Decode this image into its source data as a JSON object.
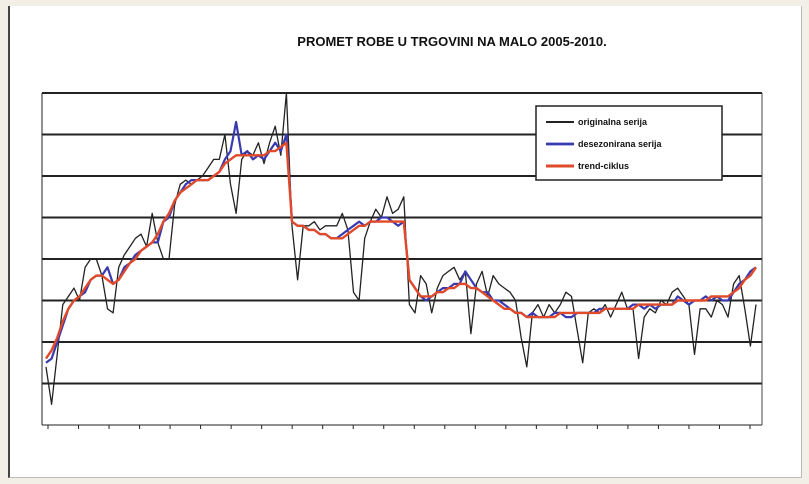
{
  "chart_data": {
    "type": "line",
    "title": "PROMET ROBE U TRGOVINI NA MALO 2005-2010.",
    "subtitle": "",
    "xlabel": "",
    "ylabel": "",
    "ylim": [
      1,
      9
    ],
    "y_ticks": [
      "",
      "",
      "",
      "",
      "",
      "",
      "",
      "",
      ""
    ],
    "x_ticks": [
      "",
      "",
      "",
      "",
      "",
      "",
      "",
      "",
      "",
      "",
      "",
      "",
      "",
      "",
      "",
      "",
      "",
      "",
      "",
      "",
      "",
      "",
      "",
      ""
    ],
    "grid": true,
    "legend_position": "top-right",
    "legend": [
      "originalna serija",
      "desezonirana serija",
      "trend-ciklus"
    ],
    "series": [
      {
        "name": "originalna serija",
        "color": "#222222",
        "values": [
          2.4,
          1.5,
          2.7,
          3.9,
          4.1,
          4.3,
          4.0,
          4.8,
          5.0,
          5.0,
          4.6,
          3.8,
          3.7,
          4.8,
          5.1,
          5.3,
          5.5,
          5.6,
          5.3,
          6.1,
          5.4,
          5.0,
          5.0,
          6.3,
          6.8,
          6.9,
          6.8,
          6.9,
          7.0,
          7.2,
          7.4,
          7.4,
          8.0,
          6.8,
          6.1,
          7.4,
          7.6,
          7.5,
          7.8,
          7.3,
          7.8,
          8.2,
          7.5,
          9.0,
          5.8,
          4.5,
          5.8,
          5.8,
          5.9,
          5.7,
          5.8,
          5.8,
          5.8,
          6.1,
          5.7,
          4.2,
          4.0,
          5.5,
          5.9,
          6.2,
          6.0,
          6.5,
          6.1,
          6.2,
          6.5,
          3.9,
          3.7,
          4.6,
          4.4,
          3.7,
          4.3,
          4.6,
          4.7,
          4.8,
          4.5,
          4.7,
          3.2,
          4.4,
          4.7,
          4.1,
          4.6,
          4.4,
          4.3,
          4.2,
          4.0,
          3.1,
          2.4,
          3.7,
          3.9,
          3.6,
          3.9,
          3.7,
          3.9,
          4.2,
          4.1,
          3.3,
          2.5,
          3.7,
          3.8,
          3.7,
          3.9,
          3.6,
          3.9,
          4.2,
          3.8,
          3.8,
          2.6,
          3.6,
          3.8,
          3.7,
          4.0,
          3.9,
          4.2,
          4.3,
          4.1,
          3.9,
          2.7,
          3.8,
          3.8,
          3.6,
          4.0,
          3.9,
          3.6,
          4.4,
          4.6,
          3.8,
          2.9,
          3.9
        ],
        "visible_count": 128
      },
      {
        "name": "desezonirana serija",
        "color": "#3a3ab0",
        "values": [
          2.5,
          2.6,
          3.0,
          3.4,
          3.8,
          4.0,
          4.1,
          4.2,
          4.5,
          4.6,
          4.6,
          4.8,
          4.4,
          4.5,
          4.8,
          4.9,
          5.1,
          5.2,
          5.3,
          5.4,
          5.4,
          5.9,
          6.0,
          6.4,
          6.6,
          6.8,
          6.9,
          6.9,
          6.9,
          6.9,
          7.0,
          7.1,
          7.4,
          7.6,
          8.3,
          7.5,
          7.6,
          7.4,
          7.5,
          7.4,
          7.6,
          7.8,
          7.6,
          8.0,
          5.9,
          5.8,
          5.8,
          5.7,
          5.7,
          5.6,
          5.6,
          5.5,
          5.5,
          5.6,
          5.7,
          5.8,
          5.9,
          5.8,
          5.9,
          5.9,
          6.0,
          6.0,
          5.9,
          5.8,
          5.9,
          4.5,
          4.3,
          4.1,
          4.0,
          4.1,
          4.2,
          4.3,
          4.3,
          4.4,
          4.4,
          4.7,
          4.5,
          4.3,
          4.2,
          4.2,
          4.0,
          4.0,
          3.9,
          3.8,
          3.7,
          3.7,
          3.6,
          3.7,
          3.6,
          3.6,
          3.6,
          3.7,
          3.7,
          3.6,
          3.6,
          3.7,
          3.7,
          3.7,
          3.7,
          3.8,
          3.8,
          3.8,
          3.8,
          3.8,
          3.8,
          3.9,
          3.9,
          3.8,
          3.9,
          3.8,
          3.9,
          3.9,
          3.9,
          4.1,
          4.0,
          3.9,
          4.0,
          4.0,
          4.1,
          4.0,
          4.1,
          4.0,
          4.0,
          4.2,
          4.4,
          4.5,
          4.7,
          4.8
        ]
      },
      {
        "name": "trend-ciklus",
        "color": "#e04a2a",
        "values": [
          2.6,
          2.8,
          3.1,
          3.5,
          3.8,
          4.0,
          4.1,
          4.3,
          4.5,
          4.6,
          4.6,
          4.5,
          4.4,
          4.5,
          4.7,
          4.9,
          5.0,
          5.2,
          5.3,
          5.4,
          5.6,
          5.9,
          6.1,
          6.4,
          6.6,
          6.7,
          6.8,
          6.9,
          6.9,
          6.9,
          7.0,
          7.1,
          7.3,
          7.4,
          7.5,
          7.5,
          7.5,
          7.5,
          7.5,
          7.5,
          7.6,
          7.6,
          7.7,
          7.8,
          5.9,
          5.8,
          5.8,
          5.7,
          5.7,
          5.6,
          5.6,
          5.5,
          5.5,
          5.5,
          5.6,
          5.7,
          5.8,
          5.8,
          5.9,
          5.9,
          5.9,
          5.9,
          5.9,
          5.9,
          5.9,
          4.5,
          4.3,
          4.1,
          4.1,
          4.1,
          4.2,
          4.2,
          4.3,
          4.3,
          4.4,
          4.4,
          4.3,
          4.3,
          4.2,
          4.1,
          4.0,
          3.9,
          3.8,
          3.8,
          3.7,
          3.7,
          3.6,
          3.6,
          3.6,
          3.6,
          3.6,
          3.6,
          3.7,
          3.7,
          3.7,
          3.7,
          3.7,
          3.7,
          3.7,
          3.7,
          3.8,
          3.8,
          3.8,
          3.8,
          3.8,
          3.8,
          3.9,
          3.9,
          3.9,
          3.9,
          3.9,
          3.9,
          3.9,
          4.0,
          4.0,
          4.0,
          4.0,
          4.0,
          4.0,
          4.1,
          4.1,
          4.1,
          4.1,
          4.2,
          4.3,
          4.5,
          4.6,
          4.8
        ]
      }
    ]
  }
}
